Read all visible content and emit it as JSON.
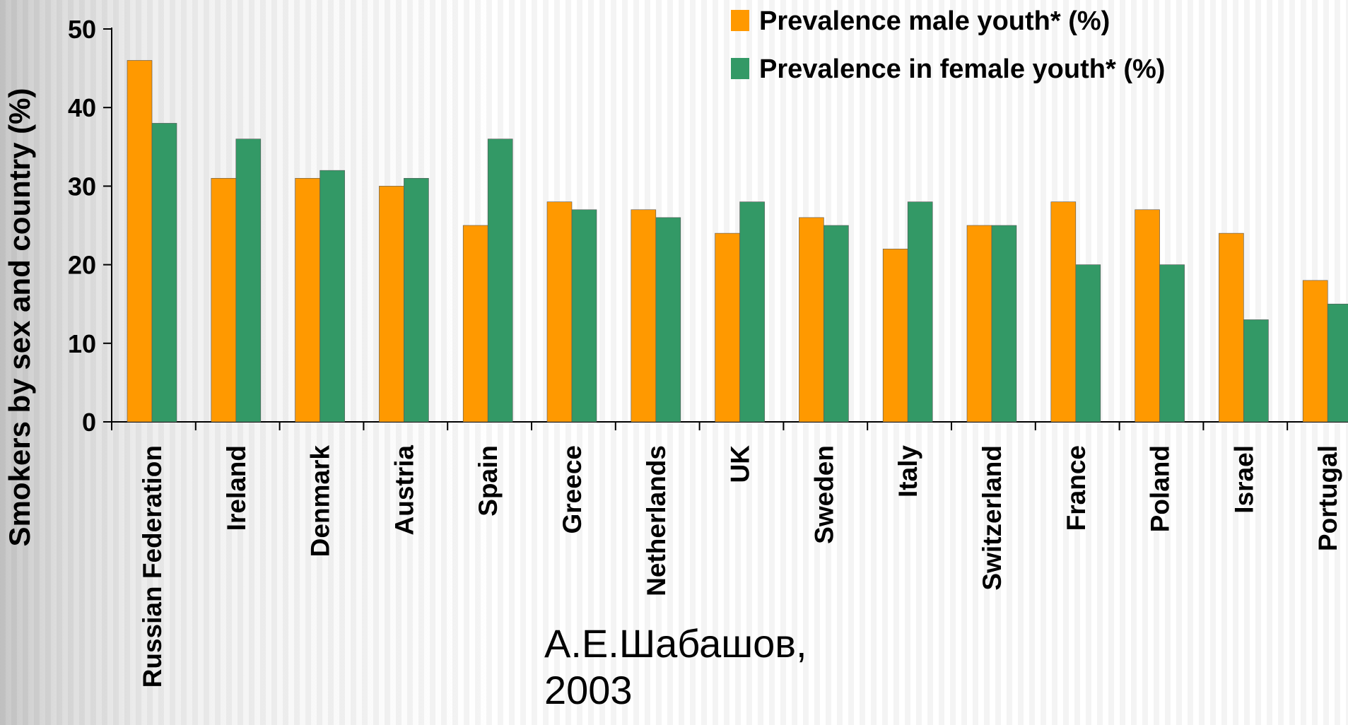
{
  "chart_data": {
    "type": "bar",
    "title": "",
    "xlabel": "",
    "ylabel": "Smokers by sex and country (%)",
    "ylim": [
      0,
      50
    ],
    "yticks": [
      0,
      10,
      20,
      30,
      40,
      50
    ],
    "grid": false,
    "legend_position": "top-right",
    "categories": [
      "Russian Federation",
      "Ireland",
      "Denmark",
      "Austria",
      "Spain",
      "Greece",
      "Netherlands",
      "UK",
      "Sweden",
      "Italy",
      "Switzerland",
      "France",
      "Poland",
      "Israel",
      "Portugal"
    ],
    "series": [
      {
        "name": "Prevalence male youth* (%)",
        "color": "#FF9900",
        "values": [
          46,
          31,
          31,
          30,
          25,
          28,
          27,
          24,
          26,
          22,
          25,
          28,
          27,
          24,
          18
        ]
      },
      {
        "name": "Prevalence in female youth* (%)",
        "color": "#339966",
        "values": [
          38,
          36,
          32,
          31,
          36,
          27,
          26,
          28,
          25,
          28,
          25,
          20,
          20,
          13,
          15
        ]
      }
    ]
  },
  "annotation": {
    "line1": "А.Е.Шабашов,",
    "line2": "2003"
  }
}
